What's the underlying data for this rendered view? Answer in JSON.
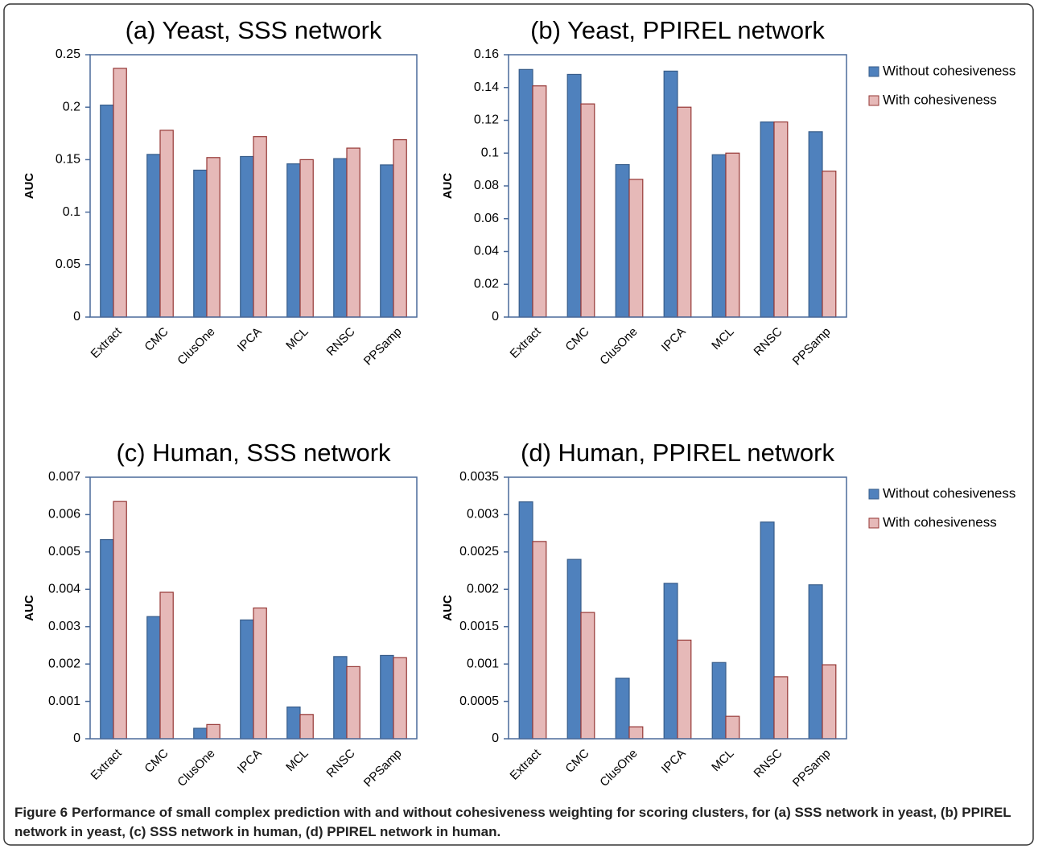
{
  "chart_data": [
    {
      "type": "bar",
      "title": "(a) Yeast, SSS network",
      "y_label": "AUC",
      "categories": [
        "Extract",
        "CMC",
        "ClusOne",
        "IPCA",
        "MCL",
        "RNSC",
        "PPSamp"
      ],
      "series": [
        {
          "color": "#4f81bd",
          "values": [
            0.202,
            0.155,
            0.14,
            0.153,
            0.146,
            0.151,
            0.145
          ]
        },
        {
          "color": "#e6b9b8",
          "values": [
            0.237,
            0.178,
            0.152,
            0.172,
            0.15,
            0.161,
            0.169
          ]
        }
      ],
      "ylim": [
        0,
        0.25
      ],
      "yticks": [
        0,
        0.05,
        0.1,
        0.15,
        0.2,
        0.25
      ]
    },
    {
      "type": "bar",
      "title": "(b) Yeast, PPIREL network",
      "y_label": "AUC",
      "categories": [
        "Extract",
        "CMC",
        "ClusOne",
        "IPCA",
        "MCL",
        "RNSC",
        "PPSamp"
      ],
      "series": [
        {
          "name": "Without cohesiveness",
          "color": "#4f81bd",
          "values": [
            0.151,
            0.148,
            0.093,
            0.15,
            0.099,
            0.119,
            0.113
          ]
        },
        {
          "name": "With cohesiveness",
          "color": "#e6b9b8",
          "values": [
            0.141,
            0.13,
            0.084,
            0.128,
            0.1,
            0.119,
            0.089
          ]
        }
      ],
      "ylim": [
        0,
        0.16
      ],
      "yticks": [
        0,
        0.02,
        0.04,
        0.06,
        0.08,
        0.1,
        0.12,
        0.14,
        0.16
      ],
      "legend": "right"
    },
    {
      "type": "bar",
      "title": "(c) Human, SSS network",
      "y_label": "AUC",
      "categories": [
        "Extract",
        "CMC",
        "ClusOne",
        "IPCA",
        "MCL",
        "RNSC",
        "PPSamp"
      ],
      "series": [
        {
          "color": "#4f81bd",
          "values": [
            0.00533,
            0.00327,
            0.00028,
            0.00318,
            0.00085,
            0.0022,
            0.00223
          ]
        },
        {
          "color": "#e6b9b8",
          "values": [
            0.00635,
            0.00392,
            0.00038,
            0.0035,
            0.00065,
            0.00193,
            0.00217
          ]
        }
      ],
      "ylim": [
        0,
        0.007
      ],
      "yticks": [
        0,
        0.001,
        0.002,
        0.003,
        0.004,
        0.005,
        0.006,
        0.007
      ]
    },
    {
      "type": "bar",
      "title": "(d) Human, PPIREL network",
      "y_label": "AUC",
      "categories": [
        "Extract",
        "CMC",
        "ClusOne",
        "IPCA",
        "MCL",
        "RNSC",
        "PPSamp"
      ],
      "series": [
        {
          "name": "Without cohesiveness",
          "color": "#4f81bd",
          "values": [
            0.00317,
            0.0024,
            0.00081,
            0.00208,
            0.00102,
            0.0029,
            0.00206
          ]
        },
        {
          "name": "With cohesiveness",
          "color": "#e6b9b8",
          "values": [
            0.00264,
            0.00169,
            0.00016,
            0.00132,
            0.0003,
            0.00083,
            0.00099
          ]
        }
      ],
      "ylim": [
        0,
        0.0035
      ],
      "yticks": [
        0,
        0.0005,
        0.001,
        0.0015,
        0.002,
        0.0025,
        0.003,
        0.0035
      ],
      "legend": "right"
    }
  ],
  "caption": {
    "label": "Figure 6",
    "text": "Performance of small complex prediction with and without cohesiveness weighting for scoring clusters, for (a) SSS network in yeast, (b) PPIREL network in yeast, (c) SSS network in human, (d) PPIREL network in human."
  }
}
